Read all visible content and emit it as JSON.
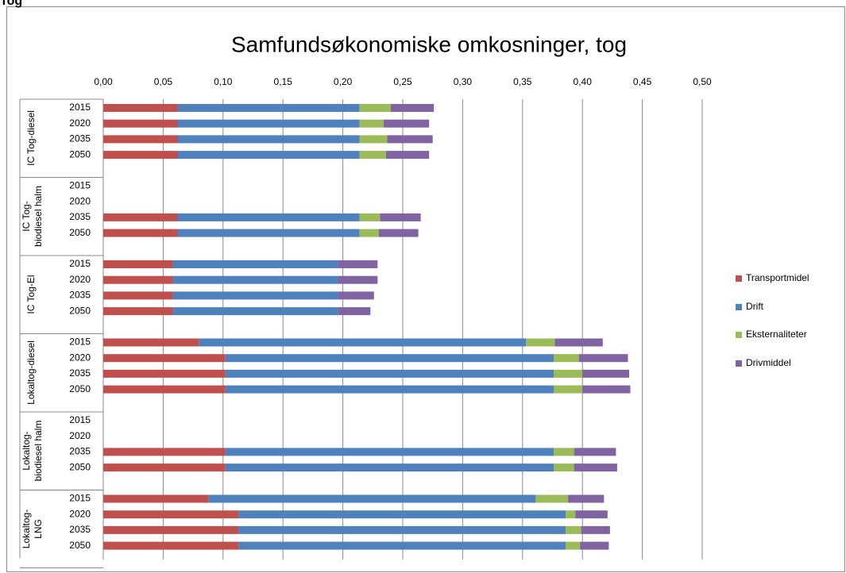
{
  "header": "Tog",
  "chart_data": {
    "type": "stacked-barh",
    "title": "Samfundsøkonomiske omkosninger, tog",
    "groups": [
      [
        "IC Tog-diesel"
      ],
      [
        "IC Tog-",
        "biodiesel halm"
      ],
      [
        "IC Tog-El"
      ],
      [
        "Lokaltog-diesel"
      ],
      [
        "Lokaltog-",
        "biodiesel halm"
      ],
      [
        "Lokaltog-",
        "LNG"
      ]
    ],
    "categories": [
      "2015",
      "2020",
      "2035",
      "2050",
      "2015",
      "2020",
      "2035",
      "2050",
      "2015",
      "2020",
      "2035",
      "2050",
      "2015",
      "2020",
      "2035",
      "2050",
      "2015",
      "2020",
      "2035",
      "2050",
      "2015",
      "2020",
      "2035",
      "2050"
    ],
    "series": [
      {
        "name": "Transportmidel",
        "color": "#c0504d",
        "values": [
          0.062,
          0.062,
          0.062,
          0.062,
          null,
          null,
          0.062,
          0.062,
          0.058,
          0.058,
          0.058,
          0.058,
          0.08,
          0.102,
          0.102,
          0.102,
          null,
          null,
          0.102,
          0.102,
          0.088,
          0.113,
          0.113,
          0.113
        ]
      },
      {
        "name": "Drift",
        "color": "#4f81bd",
        "values": [
          0.152,
          0.152,
          0.152,
          0.152,
          null,
          null,
          0.152,
          0.152,
          0.138,
          0.138,
          0.138,
          0.138,
          0.273,
          0.274,
          0.274,
          0.274,
          null,
          null,
          0.274,
          0.274,
          0.273,
          0.273,
          0.273,
          0.273
        ]
      },
      {
        "name": "Eksternaliteter",
        "color": "#9bbb59",
        "values": [
          0.026,
          0.02,
          0.023,
          0.022,
          null,
          null,
          0.017,
          0.016,
          0,
          0,
          0,
          0,
          0.024,
          0.021,
          0.024,
          0.024,
          null,
          null,
          0.017,
          0.017,
          0.027,
          0.008,
          0.013,
          0.012
        ]
      },
      {
        "name": "Drivmiddel",
        "color": "#8064a2",
        "values": [
          0.036,
          0.038,
          0.038,
          0.036,
          null,
          null,
          0.034,
          0.033,
          0.033,
          0.033,
          0.03,
          0.027,
          0.04,
          0.041,
          0.039,
          0.04,
          null,
          null,
          0.035,
          0.036,
          0.03,
          0.027,
          0.024,
          0.024
        ]
      }
    ],
    "xlim": [
      0,
      0.5
    ],
    "xticks": [
      {
        "value": 0,
        "label": "0,00"
      },
      {
        "value": 0.05,
        "label": "0,05"
      },
      {
        "value": 0.1,
        "label": "0,10"
      },
      {
        "value": 0.15,
        "label": "0,15"
      },
      {
        "value": 0.2,
        "label": "0,20"
      },
      {
        "value": 0.25,
        "label": "0,25"
      },
      {
        "value": 0.3,
        "label": "0,30"
      },
      {
        "value": 0.35,
        "label": "0,35"
      },
      {
        "value": 0.4,
        "label": "0,40"
      },
      {
        "value": 0.45,
        "label": "0,45"
      },
      {
        "value": 0.5,
        "label": "0,50"
      }
    ],
    "grid": true,
    "legend": "right"
  }
}
